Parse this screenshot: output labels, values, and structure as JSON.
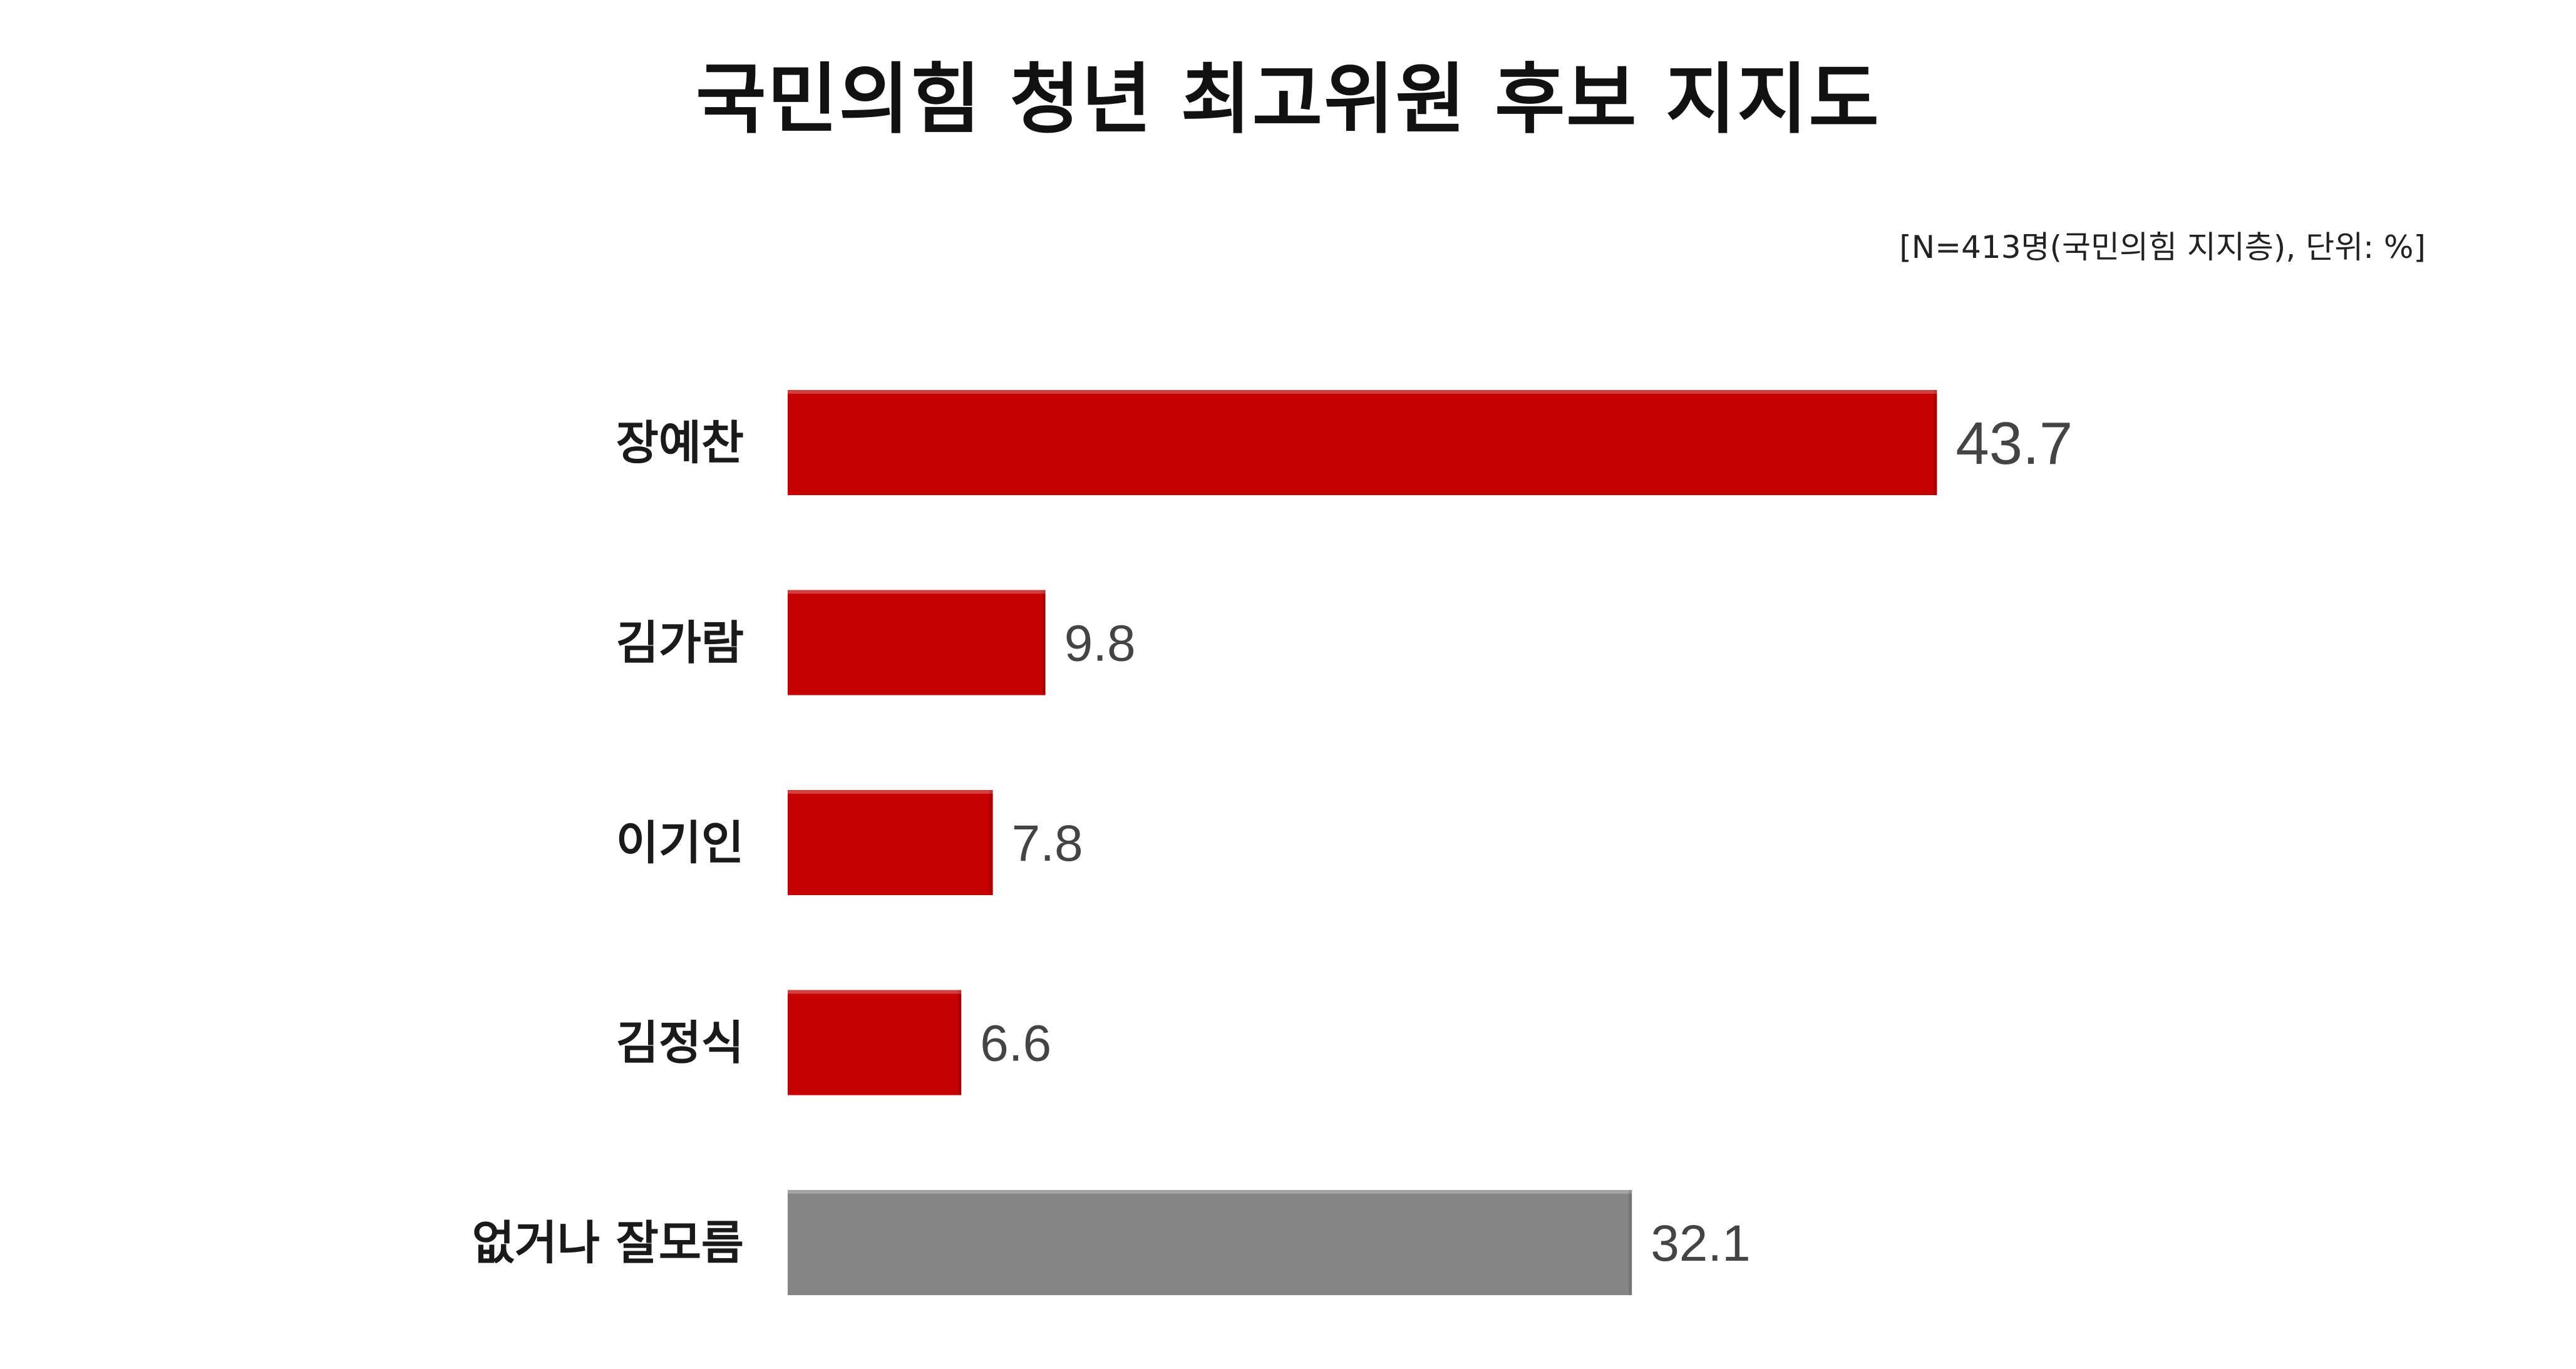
{
  "chart_data": {
    "type": "bar",
    "orientation": "horizontal",
    "title": "국민의힘 청년 최고위원 후보 지지도",
    "note": "[N=413명(국민의힘 지지층), 단위: %]",
    "categories": [
      "장예찬",
      "김가람",
      "이기인",
      "김정식",
      "없거나 잘모름"
    ],
    "values": [
      43.7,
      9.8,
      7.8,
      6.6,
      32.1
    ],
    "value_labels": [
      "43.7",
      "9.8",
      "7.8",
      "6.6",
      "32.1"
    ],
    "bar_colors": [
      "#c40000",
      "#c40000",
      "#c40000",
      "#c40000",
      "#858585"
    ],
    "xlim": [
      0,
      50
    ],
    "grid": false,
    "legend": "none"
  }
}
